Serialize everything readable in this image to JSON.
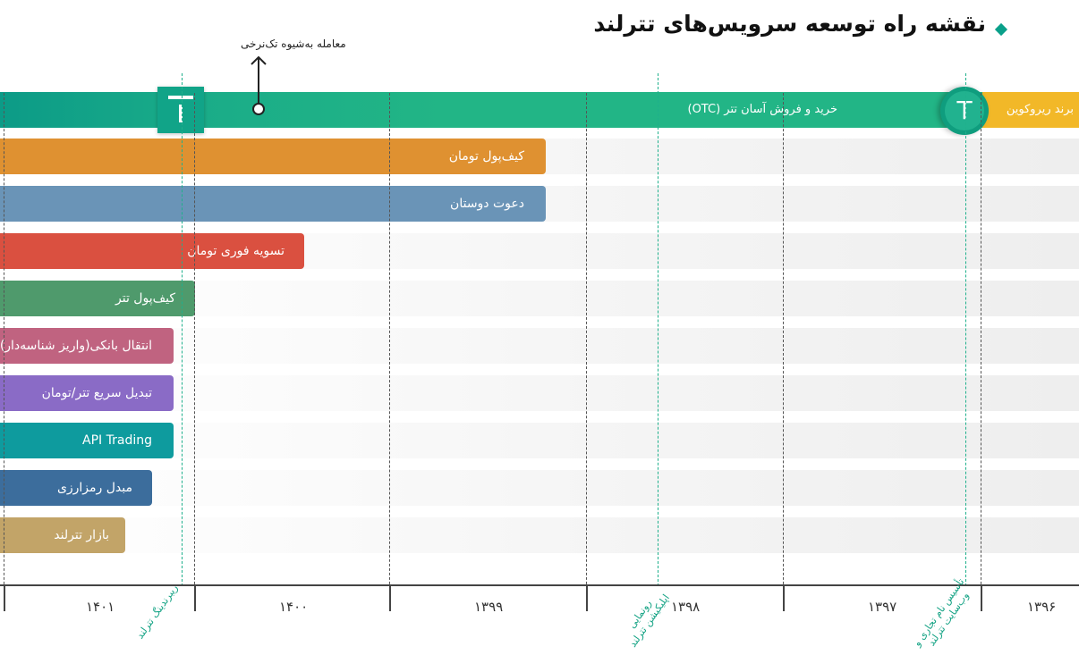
{
  "title": "نقشه راه توسعه سرویس‌های تترلند",
  "colors": {
    "otc": "#22b586",
    "otc_left": "#0c9b87",
    "brand": "#f2b828",
    "toman_wallet": "#df9131",
    "invite": "#6a94b7",
    "instant_settle": "#da5040",
    "tether_wallet": "#4f9a6c",
    "bank_transfer": "#c06380",
    "fast_convert": "#8a6bc6",
    "api": "#0e9b9e",
    "exchanger": "#3c6d9c",
    "market": "#c2a468"
  },
  "top_bar": {
    "brand_label": "برند ریروکوین",
    "otc_label": "خرید و فروش آسان تتر (OTC)",
    "coin_letter": "T",
    "logo_letter": "T",
    "single_rate_label": "معامله به‌شیوه تک‌نرخی"
  },
  "bars": [
    {
      "label": "کیف‌پول تومان"
    },
    {
      "label": "دعوت دوستان"
    },
    {
      "label": "تسویه فوری تومان"
    },
    {
      "label": "کیف‌پول تتر"
    },
    {
      "label": "انتقال بانکی(واریز شناسه‌دار)"
    },
    {
      "label": "تبدیل سریع تتر/تومان"
    },
    {
      "label": "API Trading"
    },
    {
      "label": "مبدل رمزارزی"
    },
    {
      "label": "بازار تترلند"
    }
  ],
  "years": [
    "۱۴۰۱",
    "۱۴۰۰",
    "۱۳۹۹",
    "۱۳۹۸",
    "۱۳۹۷",
    "۱۳۹۶"
  ],
  "annotations": {
    "rebranding": "ریبرندینگ تترلند",
    "app_launch_1": "رونمایی",
    "app_launch_2": "اپلیکیشن تترلند",
    "founding_1": "تأسیس نام تجاری و",
    "founding_2": "وب‌سایت تترلند"
  }
}
